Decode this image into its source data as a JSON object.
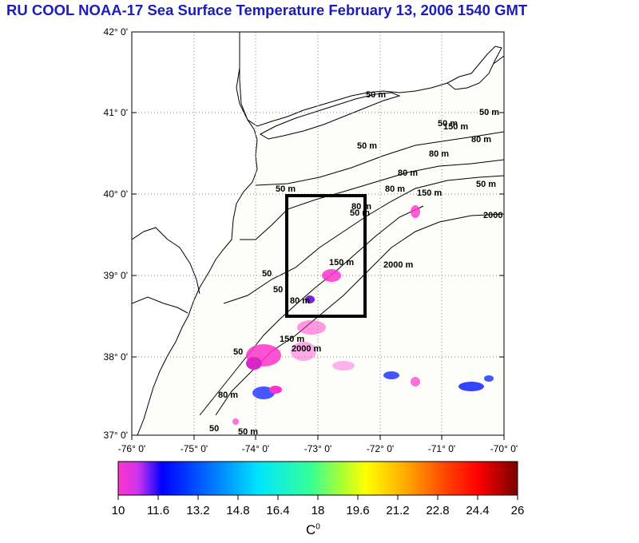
{
  "title": "RU COOL  NOAA-17 Sea Surface Temperature February 13, 2006 1540 GMT",
  "map": {
    "lon_range": [
      -76,
      -70
    ],
    "lat_range": [
      37,
      42
    ],
    "lat_labels": [
      "42° 0'",
      "41° 0'",
      "40° 0'",
      "39° 0'",
      "38° 0'",
      "37° 0'"
    ],
    "lon_labels": [
      "-76° 0'",
      "-75° 0'",
      "-74° 0'",
      "-73° 0'",
      "-72° 0'",
      "-71° 0'",
      "-70° 0'"
    ],
    "contour_labels": [
      "50 m",
      "50 m",
      "80 m",
      "50 m",
      "80 m",
      "150 m",
      "50 m",
      "2000",
      "80 m",
      "50 m",
      "150 m",
      "2000 m",
      "50",
      "50",
      "50 m",
      "80 m",
      "2000 m",
      "150 m",
      "50",
      "80 m",
      "50 m",
      "80 m",
      "150 m",
      "50",
      "50 m",
      "80 m"
    ],
    "study_box": {
      "lon_min": -73.5,
      "lon_max": -72.3,
      "lat_min": 38.5,
      "lat_max": 40.0
    }
  },
  "colorbar": {
    "min": 10,
    "max": 26,
    "tick_labels": [
      "10",
      "11.6",
      "13.2",
      "14.8",
      "16.4",
      "18",
      "19.6",
      "21.2",
      "22.8",
      "24.4",
      "26"
    ],
    "unit": "C",
    "unit_sup": "0",
    "colors": [
      "#ff33cc",
      "#8a2be2",
      "#0000ff",
      "#0077ff",
      "#00ddff",
      "#33ffaa",
      "#aaff33",
      "#ffff00",
      "#ffaa00",
      "#ff5500",
      "#ff0000",
      "#8b0000"
    ]
  }
}
